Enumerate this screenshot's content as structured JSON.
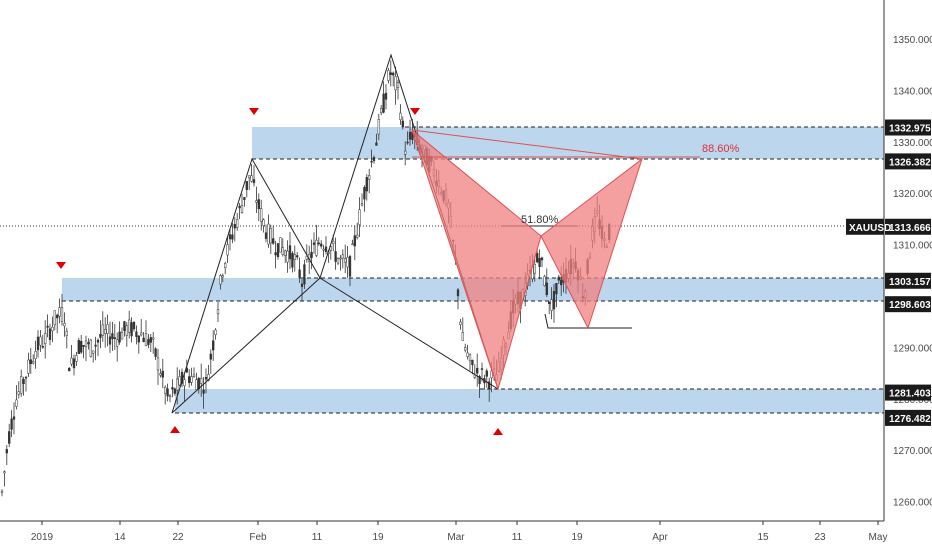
{
  "chart_data": {
    "type": "candlestick",
    "symbol": "XAUUSD",
    "last_price": "1313.666",
    "ylim": [
      1256,
      1358
    ],
    "y_ticks": [
      "1350.000",
      "1340.000",
      "1330.000",
      "1320.000",
      "1310.000",
      "1290.000",
      "1280.000",
      "1270.000",
      "1260.000"
    ],
    "x_ticks": [
      "2019",
      "14",
      "22",
      "Feb",
      "11",
      "19",
      "Mar",
      "11",
      "19",
      "Apr",
      "15",
      "23",
      "May"
    ],
    "price_labels": [
      {
        "value": 1332.975,
        "text": "1332.975"
      },
      {
        "value": 1326.382,
        "text": "1326.382"
      },
      {
        "value": 1303.157,
        "text": "1303.157"
      },
      {
        "value": 1298.603,
        "text": "1298.603"
      },
      {
        "value": 1281.403,
        "text": "1281.403"
      },
      {
        "value": 1276.482,
        "text": "1276.482"
      }
    ],
    "zones": [
      {
        "top": 1332.975,
        "bottom": 1326.382
      },
      {
        "top": 1303.157,
        "bottom": 1298.603
      },
      {
        "top": 1281.403,
        "bottom": 1276.482
      }
    ],
    "annotations": {
      "retracement_1": "51.80%",
      "retracement_2": "88.60%"
    },
    "ohlc_sample": [
      {
        "date": "2019-01-02",
        "close": 1284
      },
      {
        "date": "2019-01-04",
        "close": 1286
      },
      {
        "date": "2019-01-07",
        "close": 1289
      },
      {
        "date": "2019-01-09",
        "close": 1293
      },
      {
        "date": "2019-01-10",
        "close": 1298
      },
      {
        "date": "2019-01-15",
        "close": 1290
      },
      {
        "date": "2019-01-18",
        "close": 1282
      },
      {
        "date": "2019-01-21",
        "close": 1277
      },
      {
        "date": "2019-01-25",
        "close": 1290
      },
      {
        "date": "2019-01-29",
        "close": 1311
      },
      {
        "date": "2019-01-31",
        "close": 1326
      },
      {
        "date": "2019-02-04",
        "close": 1312
      },
      {
        "date": "2019-02-08",
        "close": 1304
      },
      {
        "date": "2019-02-11",
        "close": 1306
      },
      {
        "date": "2019-02-15",
        "close": 1318
      },
      {
        "date": "2019-02-20",
        "close": 1345
      },
      {
        "date": "2019-02-25",
        "close": 1328
      },
      {
        "date": "2019-03-01",
        "close": 1300
      },
      {
        "date": "2019-03-04",
        "close": 1288
      },
      {
        "date": "2019-03-07",
        "close": 1282
      },
      {
        "date": "2019-03-11",
        "close": 1296
      },
      {
        "date": "2019-03-14",
        "close": 1310
      },
      {
        "date": "2019-03-18",
        "close": 1300
      },
      {
        "date": "2019-03-20",
        "close": 1318
      },
      {
        "date": "2019-03-22",
        "close": 1313.666
      }
    ]
  }
}
